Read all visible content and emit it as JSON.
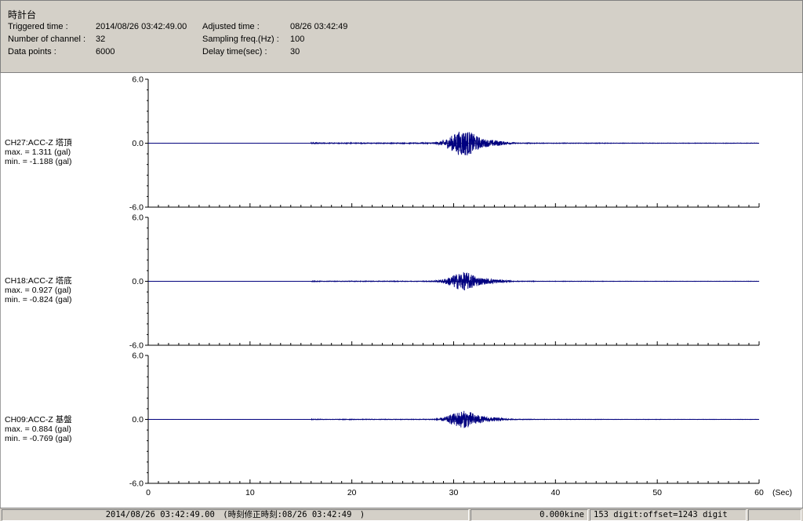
{
  "header": {
    "title": "時計台",
    "triggered_label": "Triggered time :",
    "triggered_value": "2014/08/26 03:42:49.00",
    "adjusted_label": "Adjusted time :",
    "adjusted_value": "08/26 03:42:49",
    "channels_label": "Number of channel :",
    "channels_value": "32",
    "sampling_label": "Sampling freq.(Hz) :",
    "sampling_value": "100",
    "points_label": "Data points :",
    "points_value": "6000",
    "delay_label": "Delay time(sec) :",
    "delay_value": "30"
  },
  "channels": [
    {
      "name": "CH27:ACC-Z 塔頂",
      "max": "max. = 1.311 (gal)",
      "min": "min. = -1.188 (gal)"
    },
    {
      "name": "CH18:ACC-Z 塔底",
      "max": "max. = 0.927 (gal)",
      "min": "min. = -0.824 (gal)"
    },
    {
      "name": "CH09:ACC-Z 基盤",
      "max": "max. = 0.884 (gal)",
      "min": "min. = -0.769 (gal)"
    }
  ],
  "chart_data": {
    "type": "line",
    "xlabel": "(Sec)",
    "xlim": [
      0,
      60
    ],
    "x_ticks": [
      "0",
      "10",
      "20",
      "30",
      "40",
      "50",
      "60"
    ],
    "ylim": [
      -6.0,
      6.0
    ],
    "y_ticks": [
      "6.0",
      "0.0",
      "-6.0"
    ],
    "line_color": "#000080",
    "series": [
      {
        "channel": "CH27:ACC-Z 塔頂",
        "max": 1.311,
        "min": -1.188
      },
      {
        "channel": "CH18:ACC-Z 塔底",
        "max": 0.927,
        "min": -0.824
      },
      {
        "channel": "CH09:ACC-Z 基盤",
        "max": 0.884,
        "min": -0.769
      }
    ]
  },
  "status": {
    "time": "2014/08/26 03:42:49.00　(時刻修正時刻:08/26 03:42:49　)",
    "velocity": "0.000kine",
    "digit": "153 digit:offset=1243 digit"
  }
}
